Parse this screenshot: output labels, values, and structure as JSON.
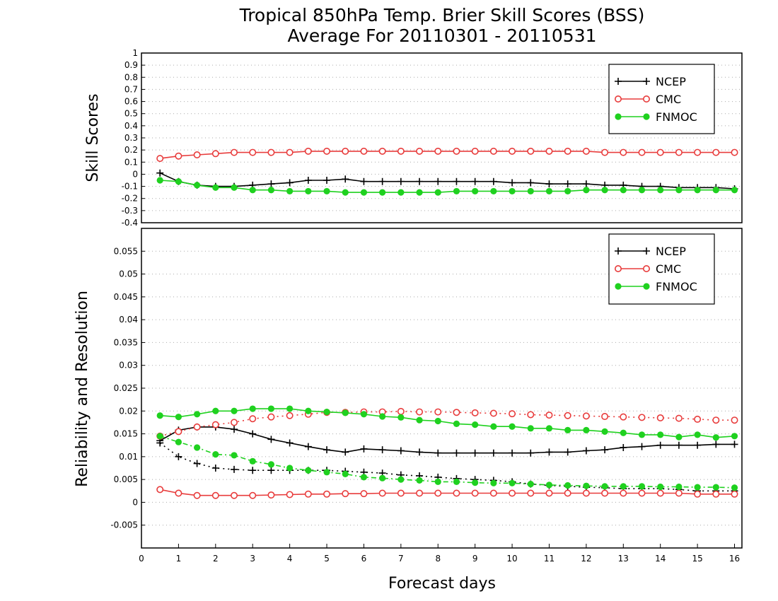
{
  "title_line1": "Tropical 850hPa Temp. Brier Skill Scores (BSS)",
  "title_line2": "Average For 20110301 - 20110531",
  "colors": {
    "NCEP": "#000000",
    "CMC": "#e83c3c",
    "FNMOC": "#1fd11f",
    "grid": "#aaaaaa"
  },
  "chart_data": [
    {
      "type": "line",
      "panel": "top",
      "ylabel": "Skill Scores",
      "ylim": [
        -0.4,
        1
      ],
      "xlim": [
        0,
        16.2
      ],
      "yticks": [
        "-0.4",
        "-0.3",
        "-0.2",
        "-0.1",
        "0",
        "0.1",
        "0.2",
        "0.3",
        "0.4",
        "0.5",
        "0.6",
        "0.7",
        "0.8",
        "0.9",
        "1"
      ],
      "grid": true,
      "legend": {
        "position": "top-right",
        "entries": [
          "NCEP",
          "CMC",
          "FNMOC"
        ]
      },
      "x": [
        0.5,
        1,
        1.5,
        2,
        2.5,
        3,
        3.5,
        4,
        4.5,
        5,
        5.5,
        6,
        6.5,
        7,
        7.5,
        8,
        8.5,
        9,
        9.5,
        10,
        10.5,
        11,
        11.5,
        12,
        12.5,
        13,
        13.5,
        14,
        14.5,
        15,
        15.5,
        16
      ],
      "series": [
        {
          "name": "NCEP",
          "marker": "plus",
          "values": [
            0.01,
            -0.06,
            -0.09,
            -0.1,
            -0.1,
            -0.09,
            -0.08,
            -0.07,
            -0.05,
            -0.05,
            -0.04,
            -0.06,
            -0.06,
            -0.06,
            -0.06,
            -0.06,
            -0.06,
            -0.06,
            -0.06,
            -0.07,
            -0.07,
            -0.08,
            -0.08,
            -0.08,
            -0.09,
            -0.09,
            -0.1,
            -0.1,
            -0.11,
            -0.11,
            -0.11,
            -0.12
          ]
        },
        {
          "name": "CMC",
          "marker": "open-circle",
          "values": [
            0.13,
            0.15,
            0.16,
            0.17,
            0.18,
            0.18,
            0.18,
            0.18,
            0.19,
            0.19,
            0.19,
            0.19,
            0.19,
            0.19,
            0.19,
            0.19,
            0.19,
            0.19,
            0.19,
            0.19,
            0.19,
            0.19,
            0.19,
            0.19,
            0.18,
            0.18,
            0.18,
            0.18,
            0.18,
            0.18,
            0.18,
            0.18
          ]
        },
        {
          "name": "FNMOC",
          "marker": "filled-circle",
          "values": [
            -0.05,
            -0.06,
            -0.09,
            -0.11,
            -0.11,
            -0.13,
            -0.13,
            -0.14,
            -0.14,
            -0.14,
            -0.15,
            -0.15,
            -0.15,
            -0.15,
            -0.15,
            -0.15,
            -0.14,
            -0.14,
            -0.14,
            -0.14,
            -0.14,
            -0.14,
            -0.14,
            -0.13,
            -0.13,
            -0.13,
            -0.13,
            -0.13,
            -0.13,
            -0.13,
            -0.13,
            -0.13
          ]
        }
      ]
    },
    {
      "type": "line",
      "panel": "bottom",
      "ylabel": "Reliability and Resolution",
      "xlabel": "Forecast days",
      "ylim": [
        -0.01,
        0.06
      ],
      "xlim": [
        0,
        16.2
      ],
      "xticks": [
        "0",
        "1",
        "2",
        "3",
        "4",
        "5",
        "6",
        "7",
        "8",
        "9",
        "10",
        "11",
        "12",
        "13",
        "14",
        "15",
        "16"
      ],
      "yticks": [
        "-0.005",
        "0",
        "0.005",
        "0.01",
        "0.015",
        "0.02",
        "0.025",
        "0.03",
        "0.035",
        "0.04",
        "0.045",
        "0.05",
        "0.055"
      ],
      "grid": true,
      "legend": {
        "position": "top-right",
        "entries": [
          "NCEP",
          "CMC",
          "FNMOC"
        ]
      },
      "x": [
        0.5,
        1,
        1.5,
        2,
        2.5,
        3,
        3.5,
        4,
        4.5,
        5,
        5.5,
        6,
        6.5,
        7,
        7.5,
        8,
        8.5,
        9,
        9.5,
        10,
        10.5,
        11,
        11.5,
        12,
        12.5,
        13,
        13.5,
        14,
        14.5,
        15,
        15.5,
        16
      ],
      "series": [
        {
          "name": "NCEP",
          "metric": "resolution",
          "style": "solid",
          "marker": "plus",
          "values": [
            0.0135,
            0.0158,
            0.0165,
            0.0165,
            0.016,
            0.015,
            0.0138,
            0.013,
            0.0122,
            0.0115,
            0.011,
            0.0117,
            0.0115,
            0.0113,
            0.011,
            0.0108,
            0.0108,
            0.0108,
            0.0108,
            0.0108,
            0.0108,
            0.011,
            0.011,
            0.0113,
            0.0115,
            0.012,
            0.0122,
            0.0125,
            0.0125,
            0.0125,
            0.0127,
            0.0127
          ]
        },
        {
          "name": "NCEP",
          "metric": "reliability",
          "style": "dotted",
          "marker": "plus",
          "values": [
            0.013,
            0.01,
            0.0085,
            0.0075,
            0.0072,
            0.007,
            0.007,
            0.007,
            0.007,
            0.007,
            0.0068,
            0.0066,
            0.0064,
            0.006,
            0.0058,
            0.0055,
            0.0052,
            0.005,
            0.0048,
            0.0045,
            0.004,
            0.0037,
            0.0035,
            0.0033,
            0.0032,
            0.003,
            0.003,
            0.003,
            0.0028,
            0.0025,
            0.0025,
            0.0025
          ]
        },
        {
          "name": "CMC",
          "metric": "resolution",
          "style": "dotted",
          "marker": "open-circle",
          "values": [
            0.0145,
            0.0155,
            0.0165,
            0.017,
            0.0175,
            0.0183,
            0.0187,
            0.019,
            0.0193,
            0.0197,
            0.0197,
            0.0198,
            0.0198,
            0.0199,
            0.0198,
            0.0198,
            0.0197,
            0.0196,
            0.0195,
            0.0194,
            0.0192,
            0.0191,
            0.019,
            0.0189,
            0.0188,
            0.0187,
            0.0186,
            0.0185,
            0.0184,
            0.0182,
            0.018,
            0.018
          ]
        },
        {
          "name": "CMC",
          "metric": "reliability",
          "style": "solid",
          "marker": "open-circle",
          "values": [
            0.0028,
            0.002,
            0.0015,
            0.0015,
            0.0015,
            0.0015,
            0.0016,
            0.0017,
            0.0018,
            0.0018,
            0.0019,
            0.0019,
            0.002,
            0.002,
            0.002,
            0.002,
            0.002,
            0.002,
            0.002,
            0.002,
            0.002,
            0.002,
            0.002,
            0.002,
            0.002,
            0.002,
            0.002,
            0.002,
            0.002,
            0.0018,
            0.0018,
            0.0018
          ]
        },
        {
          "name": "FNMOC",
          "metric": "resolution",
          "style": "solid",
          "marker": "filled-circle",
          "values": [
            0.019,
            0.0187,
            0.0193,
            0.02,
            0.02,
            0.0205,
            0.0205,
            0.0205,
            0.02,
            0.0198,
            0.0196,
            0.0193,
            0.0188,
            0.0186,
            0.018,
            0.0178,
            0.0172,
            0.017,
            0.0166,
            0.0166,
            0.0162,
            0.0162,
            0.0158,
            0.0158,
            0.0155,
            0.0152,
            0.0148,
            0.0148,
            0.0143,
            0.0148,
            0.0142,
            0.0145
          ]
        },
        {
          "name": "FNMOC",
          "metric": "reliability",
          "style": "dash-dot",
          "marker": "filled-circle",
          "values": [
            0.0145,
            0.0132,
            0.012,
            0.0105,
            0.0103,
            0.009,
            0.0083,
            0.0075,
            0.007,
            0.0066,
            0.0062,
            0.0055,
            0.0053,
            0.005,
            0.0048,
            0.0045,
            0.0045,
            0.0043,
            0.0042,
            0.0042,
            0.004,
            0.0038,
            0.0037,
            0.0036,
            0.0035,
            0.0035,
            0.0035,
            0.0034,
            0.0034,
            0.0033,
            0.0033,
            0.0032
          ]
        }
      ]
    }
  ]
}
